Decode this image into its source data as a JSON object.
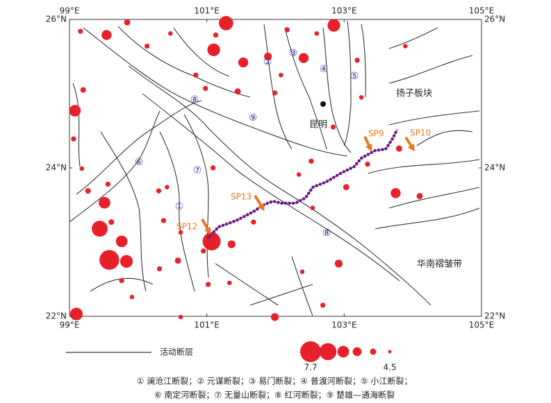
{
  "map": {
    "xticks": [
      {
        "value": 99,
        "label": "99°E"
      },
      {
        "value": 101,
        "label": "101°E"
      },
      {
        "value": 103,
        "label": "103°E"
      },
      {
        "value": 105,
        "label": "105°E"
      }
    ],
    "yticks": [
      {
        "value": 26,
        "label": "26°N"
      },
      {
        "value": 24,
        "label": "24°N"
      },
      {
        "value": 22,
        "label": "22°N"
      }
    ],
    "xlim": [
      99,
      105
    ],
    "ylim": [
      22,
      26
    ],
    "quake_color": "#e8202a",
    "fault_numbers": [
      "①",
      "②",
      "③",
      "④",
      "⑤",
      "⑥",
      "⑦",
      "⑧",
      "⑨",
      "⑧"
    ],
    "regions": [
      "扬子板块",
      "昆明",
      "华南褶皱带"
    ],
    "profiles": [
      "SP9",
      "SP10",
      "SP13",
      "SP12"
    ],
    "earthquakes": [
      {
        "lon": 101.28,
        "lat": 25.95,
        "mag": 6.5
      },
      {
        "lon": 102.85,
        "lat": 25.92,
        "mag": 6.2
      },
      {
        "lon": 99.54,
        "lat": 25.79,
        "mag": 5.7
      },
      {
        "lon": 101.1,
        "lat": 25.59,
        "mag": 6.2
      },
      {
        "lon": 101.53,
        "lat": 25.42,
        "mag": 5.7
      },
      {
        "lon": 101.89,
        "lat": 25.5,
        "mag": 5.3
      },
      {
        "lon": 102.41,
        "lat": 25.48,
        "mag": 5.7
      },
      {
        "lon": 99.08,
        "lat": 24.77,
        "mag": 6.0
      },
      {
        "lon": 99.58,
        "lat": 22.76,
        "mag": 7.5
      },
      {
        "lon": 101.07,
        "lat": 23.01,
        "mag": 7.2
      },
      {
        "lon": 99.44,
        "lat": 23.18,
        "mag": 6.8
      },
      {
        "lon": 99.51,
        "lat": 23.53,
        "mag": 6.0
      },
      {
        "lon": 99.76,
        "lat": 23.01,
        "mag": 6.0
      },
      {
        "lon": 99.83,
        "lat": 22.74,
        "mag": 6.2
      },
      {
        "lon": 99.1,
        "lat": 22.03,
        "mag": 6.2
      },
      {
        "lon": 103.75,
        "lat": 23.66,
        "mag": 5.7
      },
      {
        "lon": 102.92,
        "lat": 22.71,
        "mag": 5.3
      },
      {
        "lon": 101.99,
        "lat": 21.99,
        "mag": 5.3
      },
      {
        "lon": 101.36,
        "lat": 22.97,
        "mag": 5.3
      },
      {
        "lon": 104.1,
        "lat": 23.62,
        "mag": 5.0
      },
      {
        "lon": 103.8,
        "lat": 24.26,
        "mag": 5.0
      },
      {
        "lon": 103.03,
        "lat": 23.74,
        "mag": 5.0
      },
      {
        "lon": 99.16,
        "lat": 25.84,
        "mag": 4.8
      },
      {
        "lon": 99.84,
        "lat": 25.96,
        "mag": 5.0
      },
      {
        "lon": 100.13,
        "lat": 25.64,
        "mag": 4.8
      },
      {
        "lon": 100.47,
        "lat": 25.81,
        "mag": 4.7
      },
      {
        "lon": 100.84,
        "lat": 25.25,
        "mag": 4.8
      },
      {
        "lon": 101.45,
        "lat": 25.03,
        "mag": 5.0
      },
      {
        "lon": 101.99,
        "lat": 25.01,
        "mag": 4.8
      },
      {
        "lon": 102.17,
        "lat": 25.86,
        "mag": 4.8
      },
      {
        "lon": 102.6,
        "lat": 25.81,
        "mag": 4.7
      },
      {
        "lon": 103.19,
        "lat": 25.45,
        "mag": 4.8
      },
      {
        "lon": 103.25,
        "lat": 24.95,
        "mag": 4.7
      },
      {
        "lon": 103.89,
        "lat": 25.64,
        "mag": 4.7
      },
      {
        "lon": 99.2,
        "lat": 25.05,
        "mag": 4.9
      },
      {
        "lon": 99.06,
        "lat": 24.39,
        "mag": 4.8
      },
      {
        "lon": 99.18,
        "lat": 23.99,
        "mag": 4.7
      },
      {
        "lon": 99.27,
        "lat": 23.69,
        "mag": 4.9
      },
      {
        "lon": 99.56,
        "lat": 23.78,
        "mag": 4.8
      },
      {
        "lon": 99.61,
        "lat": 23.27,
        "mag": 4.9
      },
      {
        "lon": 100.3,
        "lat": 23.69,
        "mag": 4.8
      },
      {
        "lon": 100.42,
        "lat": 23.74,
        "mag": 4.7
      },
      {
        "lon": 100.37,
        "lat": 23.29,
        "mag": 4.8
      },
      {
        "lon": 100.62,
        "lat": 23.13,
        "mag": 4.7
      },
      {
        "lon": 100.58,
        "lat": 22.75,
        "mag": 5.0
      },
      {
        "lon": 100.31,
        "lat": 22.64,
        "mag": 4.8
      },
      {
        "lon": 99.76,
        "lat": 22.48,
        "mag": 4.8
      },
      {
        "lon": 99.91,
        "lat": 22.26,
        "mag": 4.7
      },
      {
        "lon": 101.02,
        "lat": 22.43,
        "mag": 4.8
      },
      {
        "lon": 101.33,
        "lat": 22.45,
        "mag": 4.7
      },
      {
        "lon": 102.39,
        "lat": 22.6,
        "mag": 4.7
      },
      {
        "lon": 102.69,
        "lat": 22.15,
        "mag": 4.8
      },
      {
        "lon": 100.62,
        "lat": 21.99,
        "mag": 4.7
      },
      {
        "lon": 101.68,
        "lat": 23.27,
        "mag": 4.8
      },
      {
        "lon": 102.34,
        "lat": 23.91,
        "mag": 4.7
      },
      {
        "lon": 102.52,
        "lat": 24.09,
        "mag": 4.8
      },
      {
        "lon": 101.09,
        "lat": 24.0,
        "mag": 4.8
      },
      {
        "lon": 102.54,
        "lat": 23.46,
        "mag": 4.7
      },
      {
        "lon": 102.84,
        "lat": 24.55,
        "mag": 4.8
      },
      {
        "lon": 103.34,
        "lat": 24.05,
        "mag": 4.8
      },
      {
        "lon": 100.95,
        "lat": 22.88,
        "mag": 4.8
      },
      {
        "lon": 101.13,
        "lat": 25.79,
        "mag": 4.8
      },
      {
        "lon": 100.98,
        "lat": 25.07,
        "mag": 4.8
      },
      {
        "lon": 102.08,
        "lat": 25.25,
        "mag": 4.7
      }
    ]
  },
  "legend": {
    "fault_label": "活动断层",
    "magnitudes": [
      7.7,
      7,
      6,
      5.5,
      5,
      4.5
    ]
  },
  "caption": [
    "① 澜沧江断裂；② 元谋断裂；③ 易门断裂；④ 普渡河断裂；⑤ 小江断裂；",
    "⑥ 南定河断裂；⑦ 无量山断裂；⑧ 红河断裂；⑨ 楚雄—通海断裂"
  ]
}
